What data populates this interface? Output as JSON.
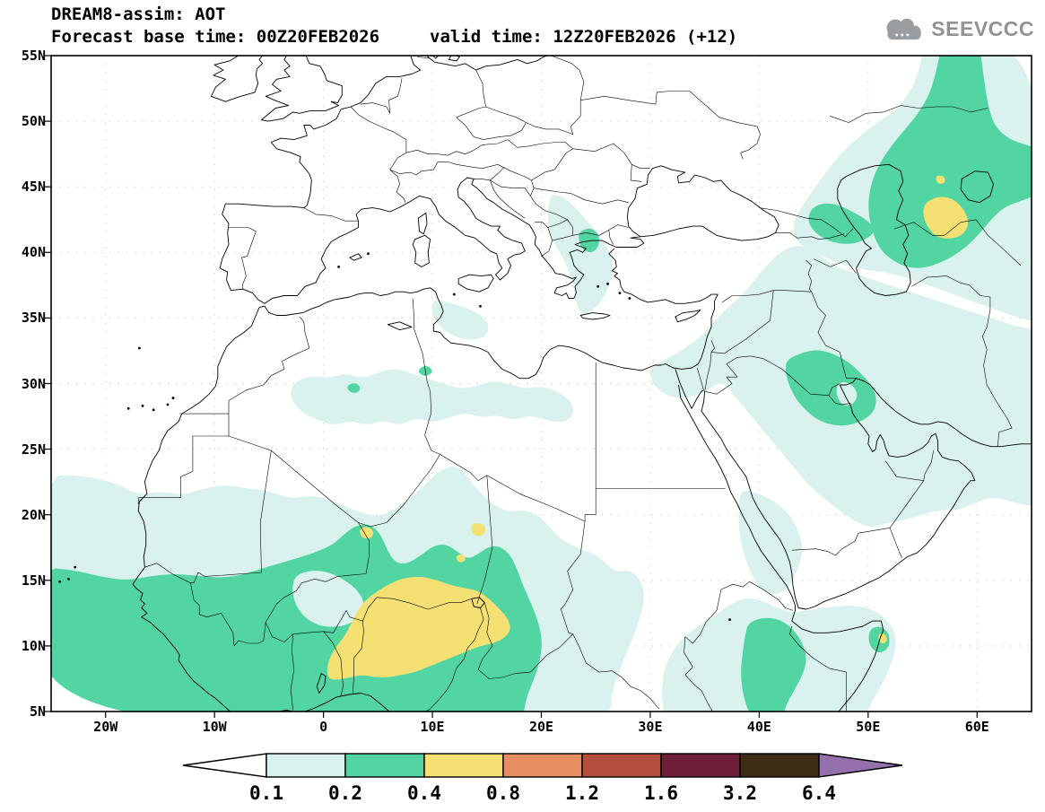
{
  "header": {
    "title": "DREAM8-assim: AOT",
    "base_time": "Forecast base time: 00Z20FEB2026",
    "valid_time": "valid time: 12Z20FEB2026 (+12)"
  },
  "logo": {
    "text": "SEEVCCC"
  },
  "map": {
    "lat_tick_labels": [
      "55N",
      "50N",
      "45N",
      "40N",
      "35N",
      "30N",
      "25N",
      "20N",
      "15N",
      "10N",
      "5N"
    ],
    "lat_tick_values": [
      55,
      50,
      45,
      40,
      35,
      30,
      25,
      20,
      15,
      10,
      5
    ],
    "lon_tick_labels": [
      "20W",
      "10W",
      "0",
      "10E",
      "20E",
      "30E",
      "40E",
      "50E",
      "60E"
    ],
    "lon_tick_values": [
      -20,
      -10,
      0,
      10,
      20,
      30,
      40,
      50,
      60
    ]
  },
  "colorbar": {
    "tick_labels": [
      "0.1",
      "0.2",
      "0.4",
      "0.8",
      "1.2",
      "1.6",
      "3.2",
      "6.4"
    ],
    "box_colors": [
      "#d9f2ed",
      "#52d5a2",
      "#f5e173",
      "#e78f63",
      "#b34f3c",
      "#6e1f3a",
      "#3c2d14"
    ],
    "left_arrow_color": "#ffffff",
    "right_arrow_color": "#9470ad"
  },
  "palette": {
    "level_0_1": "#d9f2ed",
    "level_0_2": "#52d5a2",
    "level_0_4": "#f5e173",
    "line_color": "#000000",
    "grid_color": "#b9c6c6",
    "logo_gray": "#9a9da0"
  },
  "chart_data": {
    "type": "filled_contour_map",
    "title": "DREAM8-assim: AOT",
    "variable": "AOT",
    "forecast_base_time": "00Z20FEB2026",
    "valid_time": "12Z20FEB2026 (+12)",
    "lead_hours": 12,
    "lon_ticks": [
      "20W",
      "10W",
      "0",
      "10E",
      "20E",
      "30E",
      "40E",
      "50E",
      "60E"
    ],
    "lat_ticks": [
      "5N",
      "10N",
      "15N",
      "20N",
      "25N",
      "30N",
      "35N",
      "40N",
      "45N",
      "50N",
      "55N"
    ],
    "contour_levels": [
      0.1,
      0.2,
      0.4,
      0.8,
      1.2,
      1.6,
      3.2,
      6.4
    ],
    "level_colors": [
      "#d9f2ed",
      "#52d5a2",
      "#f5e173",
      "#e78f63",
      "#b34f3c",
      "#6e1f3a",
      "#3c2d14",
      "#9470ad"
    ],
    "max_level_shaded_on_map": "0.4-0.8",
    "shaded_regions": [
      {
        "region": "Sahel (Nigeria-Niger-Chad)",
        "aot": "0.4-0.8"
      },
      {
        "region": "West Africa / Gulf of Guinea coast",
        "aot": "0.2-0.4"
      },
      {
        "region": "Sahara fringe (Algeria-Libya, ~28-31N)",
        "aot": "0.1-0.2"
      },
      {
        "region": "Iraq / northern Persian Gulf",
        "aot": "0.2-0.4"
      },
      {
        "region": "East of the Caspian Sea (small maxima)",
        "aot": "0.4-0.8"
      },
      {
        "region": "Horn of Africa (Cape Guardafui)",
        "aot": "0.4-0.8"
      },
      {
        "region": "Aegean / northern Greece",
        "aot": "0.2-0.4"
      },
      {
        "region": "Middle East / Arabian Peninsula",
        "aot": "0.1-0.2"
      }
    ]
  }
}
